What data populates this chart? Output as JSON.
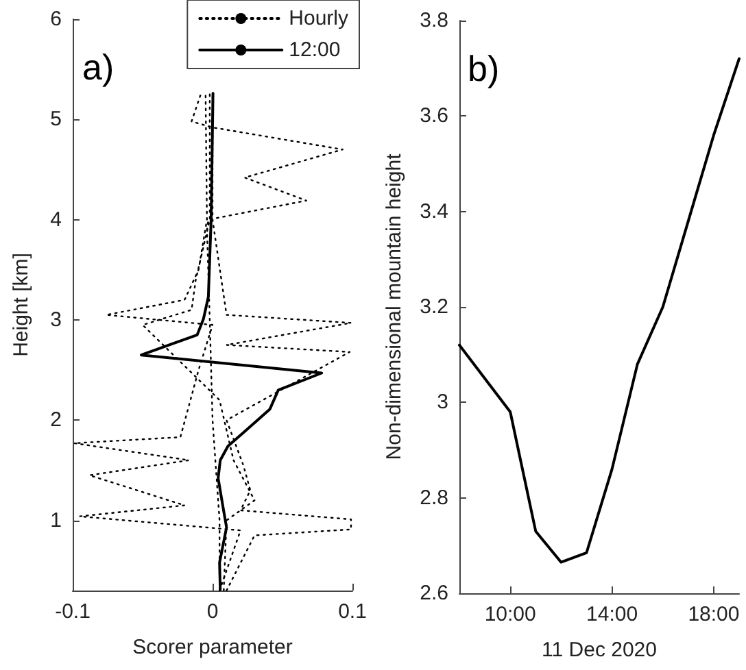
{
  "chart_data": [
    {
      "type": "line",
      "annotations": [
        "a)"
      ],
      "xlabel": "Scorer parameter",
      "ylabel": "Height [km]",
      "xlim": [
        -0.1,
        0.1
      ],
      "xticks": [
        -0.1,
        0,
        0.1
      ],
      "ylim": [
        0.3,
        6
      ],
      "yticks": [
        1,
        2,
        3,
        4,
        5,
        6
      ],
      "grid": false,
      "legend": "top right",
      "marker": "none",
      "series": [
        {
          "name": "Hourly",
          "color": "#000000",
          "line_style": "dotted",
          "x": [
            0.005,
            0.005,
            0.0,
            -0.002,
            -0.004,
            -0.003,
            0.067,
            0.023,
            0.093,
            0.0,
            -0.015,
            -0.008
          ],
          "values": [
            0.3,
            1,
            2,
            3,
            3.9,
            4.0,
            4.19,
            4.42,
            4.7,
            4.92,
            4.98,
            5.27
          ]
        },
        {
          "color": "#000000",
          "line_style": "dotted",
          "x": [
            0.005,
            0.02,
            -0.095,
            -0.02,
            -0.088,
            -0.017,
            -0.099,
            -0.023,
            -0.01,
            0.0,
            -0.076,
            -0.02,
            -0.01,
            -0.004,
            -0.005
          ],
          "values": [
            0.3,
            0.9,
            1.04,
            1.15,
            1.45,
            1.6,
            1.77,
            1.83,
            2.5,
            2.95,
            3.05,
            3.2,
            3.5,
            4.0,
            5.27
          ]
        },
        {
          "color": "#000000",
          "line_style": "dotted",
          "x": [
            0.01,
            0.03,
            0.099,
            0.099,
            0.02,
            0.027,
            0.022,
            0.01,
            0.098,
            0.01,
            0.099,
            0.01,
            0.0,
            0.0
          ],
          "values": [
            0.3,
            0.85,
            0.91,
            1.01,
            1.1,
            1.3,
            1.55,
            2.0,
            2.68,
            2.75,
            2.97,
            3.05,
            4.0,
            5.27
          ]
        },
        {
          "color": "#000000",
          "line_style": "dotted",
          "x": [
            0.008,
            0.01,
            0.03,
            0.015,
            0.005,
            -0.05,
            -0.015,
            -0.012,
            -0.002,
            -0.002
          ],
          "values": [
            0.3,
            1.0,
            1.2,
            1.6,
            2.2,
            2.95,
            3.1,
            3.4,
            4.0,
            5.27
          ]
        },
        {
          "name": "12:00",
          "color": "#000000",
          "line_style": "solid",
          "x": [
            0.0055,
            0.005,
            0.01,
            0.008,
            0.004,
            0.0055,
            0.011,
            0.024,
            0.041,
            0.047,
            0.078,
            -0.051,
            -0.011,
            -0.0065,
            -0.003,
            -0.001,
            0.0003
          ],
          "values": [
            0.31,
            0.58,
            0.93,
            1.09,
            1.42,
            1.6,
            1.74,
            1.9,
            2.11,
            2.3,
            2.47,
            2.65,
            2.85,
            3.01,
            3.23,
            4.01,
            5.26
          ]
        }
      ]
    },
    {
      "type": "line",
      "annotations": [
        "b)"
      ],
      "xlabel": "11 Dec 2020",
      "ylabel": "Non-dimensional mountain height",
      "xlim": [
        8,
        19
      ],
      "xticks": [
        {
          "value": 10,
          "label": "10:00"
        },
        {
          "value": 14,
          "label": "14:00"
        },
        {
          "value": 18,
          "label": "18:00"
        }
      ],
      "ylim": [
        2.6,
        3.8
      ],
      "yticks": [
        2.6,
        2.8,
        3,
        3.2,
        3.4,
        3.6,
        3.8
      ],
      "grid": false,
      "marker": "none",
      "line_style": "solid",
      "x": [
        8,
        10,
        11,
        12,
        13,
        14,
        15,
        16,
        17,
        18,
        19
      ],
      "series": [
        {
          "color": "#000000",
          "values": [
            3.12,
            2.98,
            2.73,
            2.665,
            2.685,
            2.86,
            3.08,
            3.2,
            3.38,
            3.56,
            3.72
          ]
        }
      ]
    }
  ]
}
